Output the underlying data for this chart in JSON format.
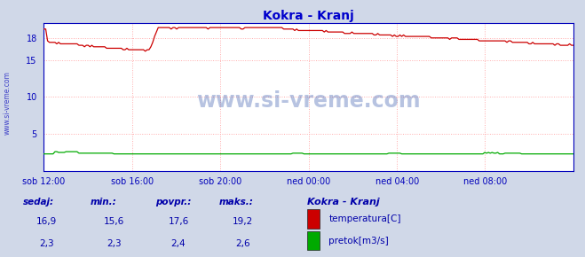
{
  "title": "Kokra - Kranj",
  "title_color": "#0000cc",
  "bg_color": "#d0d8e8",
  "plot_bg_color": "#ffffff",
  "grid_color": "#ffaaaa",
  "grid_linestyle": ":",
  "x_tick_labels": [
    "sob 12:00",
    "sob 16:00",
    "sob 20:00",
    "ned 00:00",
    "ned 04:00",
    "ned 08:00"
  ],
  "x_tick_positions": [
    0.0,
    0.167,
    0.333,
    0.5,
    0.667,
    0.833
  ],
  "ylim": [
    0,
    20
  ],
  "y_ticks": [
    5,
    10,
    15,
    18
  ],
  "y_tick_labels": [
    "5",
    "10",
    "15",
    "18"
  ],
  "temp_color": "#cc0000",
  "flow_color": "#00aa00",
  "border_color": "#0000bb",
  "watermark": "www.si-vreme.com",
  "watermark_color": "#3355aa",
  "watermark_alpha": 0.35,
  "footer_bg": "#c8d4e8",
  "footer_label_color": "#0000aa",
  "legend_title": "Kokra - Kranj",
  "temp_label": "temperatura[C]",
  "flow_label": "pretok[m3/s]",
  "sedaj_temp": "16,9",
  "min_temp": "15,6",
  "povpr_temp": "17,6",
  "maks_temp": "19,2",
  "sedaj_flow": "2,3",
  "min_flow": "2,3",
  "povpr_flow": "2,4",
  "maks_flow": "2,6",
  "n_points": 288
}
